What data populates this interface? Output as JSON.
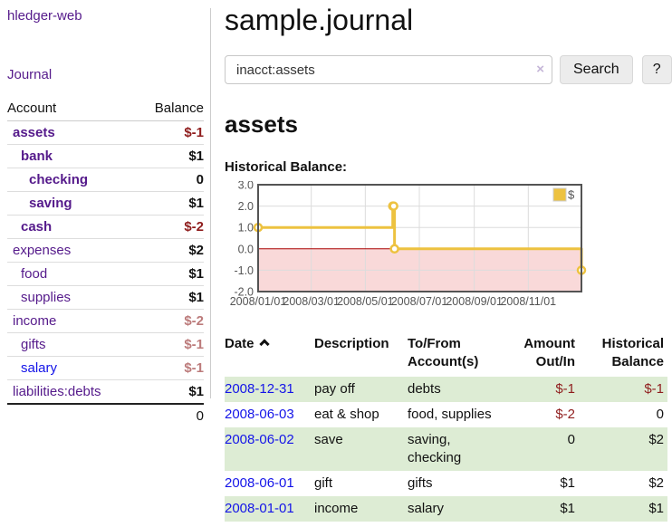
{
  "app_title": "hledger-web",
  "sidebar": {
    "journal_link": "Journal",
    "account_header": "Account",
    "balance_header": "Balance",
    "accounts": [
      {
        "name": "assets",
        "balance": "$-1",
        "depth": 1,
        "bold": true,
        "balance_style": "neg-strong",
        "link_color": "purple"
      },
      {
        "name": "bank",
        "balance": "$1",
        "depth": 2,
        "bold": true,
        "balance_style": "pos",
        "link_color": "purple"
      },
      {
        "name": "checking",
        "balance": "0",
        "depth": 3,
        "bold": true,
        "balance_style": "pos",
        "link_color": "purple"
      },
      {
        "name": "saving",
        "balance": "$1",
        "depth": 3,
        "bold": true,
        "balance_style": "pos",
        "link_color": "purple"
      },
      {
        "name": "cash",
        "balance": "$-2",
        "depth": 2,
        "bold": true,
        "balance_style": "neg-strong",
        "link_color": "purple"
      },
      {
        "name": "expenses",
        "balance": "$2",
        "depth": 1,
        "bold": false,
        "balance_style": "pos",
        "link_color": "purple"
      },
      {
        "name": "food",
        "balance": "$1",
        "depth": 2,
        "bold": false,
        "balance_style": "pos",
        "link_color": "purple"
      },
      {
        "name": "supplies",
        "balance": "$1",
        "depth": 2,
        "bold": false,
        "balance_style": "pos",
        "link_color": "purple"
      },
      {
        "name": "income",
        "balance": "$-2",
        "depth": 1,
        "bold": false,
        "balance_style": "neg-muted",
        "link_color": "purple"
      },
      {
        "name": "gifts",
        "balance": "$-1",
        "depth": 2,
        "bold": false,
        "balance_style": "neg-muted",
        "link_color": "purple"
      },
      {
        "name": "salary",
        "balance": "$-1",
        "depth": 2,
        "bold": false,
        "balance_style": "neg-muted",
        "link_color": "blue"
      },
      {
        "name": "liabilities:debts",
        "balance": "$1",
        "depth": 1,
        "bold": false,
        "balance_style": "pos",
        "link_color": "purple"
      }
    ],
    "total": "0"
  },
  "header": {
    "title": "sample.journal"
  },
  "search": {
    "value": "inacct:assets",
    "clear_icon": "×",
    "search_button": "Search",
    "help_button": "?"
  },
  "content": {
    "account_title": "assets",
    "chart_title": "Historical Balance:"
  },
  "chart_data": {
    "type": "line",
    "style": "step",
    "title": "Historical Balance of assets",
    "legend": {
      "label": "$",
      "position": "top-right"
    },
    "x_ticks": [
      "2008/01/01",
      "2008/03/01",
      "2008/05/01",
      "2008/07/01",
      "2008/09/01",
      "2008/11/01"
    ],
    "tick_days": [
      0,
      60,
      121,
      182,
      244,
      305
    ],
    "y_ticks": [
      "3.0",
      "2.0",
      "1.0",
      "0.0",
      "-1.0",
      "-2.0"
    ],
    "ylim": [
      -2,
      3
    ],
    "x_range_days": 365,
    "grid": true,
    "series": [
      {
        "name": "$",
        "color": "#edc240",
        "dates": [
          "2008-01-01",
          "2008-06-01",
          "2008-06-02",
          "2008-06-03",
          "2008-12-31"
        ],
        "days": [
          0,
          152,
          153,
          154,
          365
        ],
        "values": [
          1,
          2,
          2,
          0,
          -1
        ]
      }
    ],
    "negative_region_fill": "#f9d9d9",
    "zero_line_color": "#aa0000",
    "grid_color": "#dcdcdc",
    "border_color": "#545454",
    "label_color": "#545454"
  },
  "register": {
    "columns": [
      "Date",
      "Description",
      "To/From Account(s)",
      "Amount Out/In",
      "Historical Balance"
    ],
    "sort_column": "Date",
    "sort_direction": "ascending",
    "rows": [
      {
        "date": "2008-12-31",
        "description": "pay off",
        "accounts": "debts",
        "amount": "$-1",
        "amount_neg": true,
        "balance": "$-1",
        "balance_neg": true
      },
      {
        "date": "2008-06-03",
        "description": "eat & shop",
        "accounts": "food, supplies",
        "amount": "$-2",
        "amount_neg": true,
        "balance": "0",
        "balance_neg": false
      },
      {
        "date": "2008-06-02",
        "description": "save",
        "accounts": "saving, checking",
        "amount": "0",
        "amount_neg": false,
        "balance": "$2",
        "balance_neg": false
      },
      {
        "date": "2008-06-01",
        "description": "gift",
        "accounts": "gifts",
        "amount": "$1",
        "amount_neg": false,
        "balance": "$2",
        "balance_neg": false
      },
      {
        "date": "2008-01-01",
        "description": "income",
        "accounts": "salary",
        "amount": "$1",
        "amount_neg": false,
        "balance": "$1",
        "balance_neg": false
      }
    ]
  },
  "colors": {
    "link_purple": "#551a8b",
    "link_blue": "#1414e8",
    "negative_strong": "#8f1d1d",
    "negative_muted": "#bc7b7b",
    "row_green": "#ddecd4",
    "chart_line": "#edc240"
  }
}
